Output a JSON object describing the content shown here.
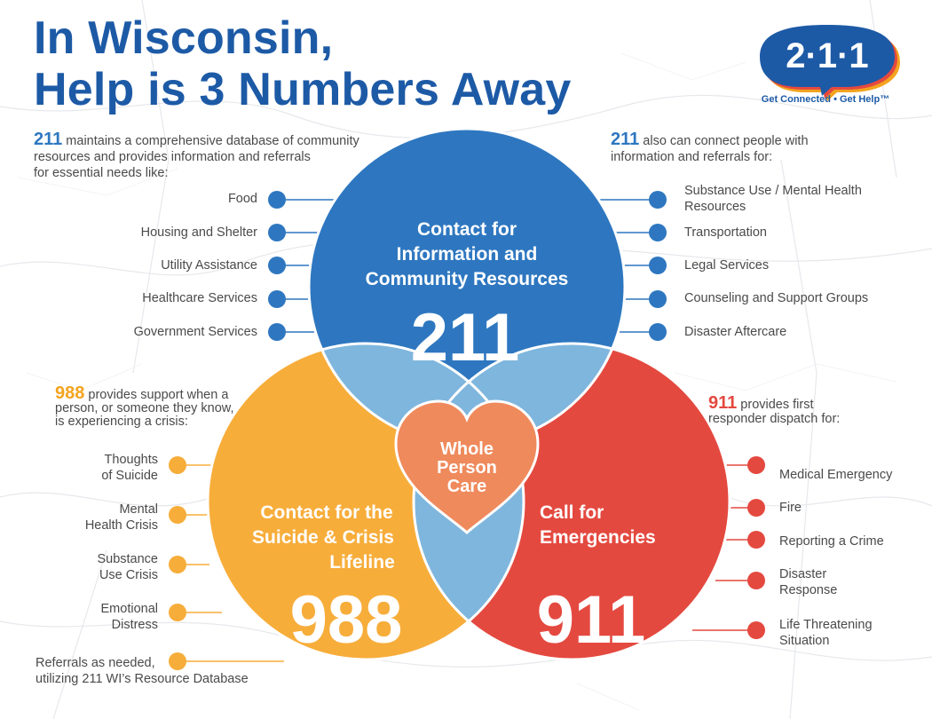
{
  "title": {
    "line1": "In Wisconsin,",
    "line2": "Help is 3 Numbers Away"
  },
  "logo": {
    "mark": "2·1·1",
    "tagline": "Get Connected • Get Help™"
  },
  "intro_211_left": {
    "number": "211",
    "line1": "maintains a comprehensive database of community",
    "line2": "resources and provides information and referrals",
    "line3": "for essential needs like:"
  },
  "intro_211_right": {
    "number": "211",
    "line1": "also can connect people with",
    "line2": "information and referrals for:"
  },
  "intro_988": {
    "number": "988",
    "line1": "provides support when a",
    "line2": "person, or someone they know,",
    "line3": "is experiencing a crisis:"
  },
  "intro_911": {
    "number": "911",
    "line1": "provides first",
    "line2": "responder dispatch for:"
  },
  "list_211_left": [
    "Food",
    "Housing and Shelter",
    "Utility Assistance",
    "Healthcare Services",
    "Government Services"
  ],
  "list_211_right": [
    {
      "l1": "Substance Use / Mental Health",
      "l2": "Resources"
    },
    {
      "l1": "Transportation",
      "l2": ""
    },
    {
      "l1": "Legal Services",
      "l2": ""
    },
    {
      "l1": "Counseling and Support Groups",
      "l2": ""
    },
    {
      "l1": "Disaster Aftercare",
      "l2": ""
    }
  ],
  "list_988": [
    {
      "l1": "Thoughts",
      "l2": "of Suicide"
    },
    {
      "l1": "Mental",
      "l2": "Health Crisis"
    },
    {
      "l1": "Substance",
      "l2": "Use Crisis"
    },
    {
      "l1": "Emotional",
      "l2": "Distress"
    },
    {
      "l1": "Referrals as needed,",
      "l2": "utilizing 211 WI’s Resource Database"
    }
  ],
  "list_911": [
    {
      "l1": "Medical Emergency",
      "l2": ""
    },
    {
      "l1": "Fire",
      "l2": ""
    },
    {
      "l1": "Reporting a Crime",
      "l2": ""
    },
    {
      "l1": "Disaster",
      "l2": "Response"
    },
    {
      "l1": "Life Threatening",
      "l2": "Situation"
    }
  ],
  "venn": {
    "c211": {
      "l1": "Contact for",
      "l2": "Information and",
      "l3": "Community Resources",
      "number": "211"
    },
    "c988": {
      "l1": "Contact for the",
      "l2": "Suicide & Crisis",
      "l3": "Lifeline",
      "number": "988"
    },
    "c911": {
      "l1": "Call for",
      "l2": "Emergencies",
      "number": "911"
    },
    "center": {
      "l1": "Whole",
      "l2": "Person",
      "l3": "Care"
    }
  },
  "colors": {
    "blue": "#2e77c0",
    "orange": "#f7ad3a",
    "red": "#e4493f",
    "overlap": "#7fb6dd",
    "heart": "#ef8a5c",
    "title": "#1d5aa6"
  }
}
